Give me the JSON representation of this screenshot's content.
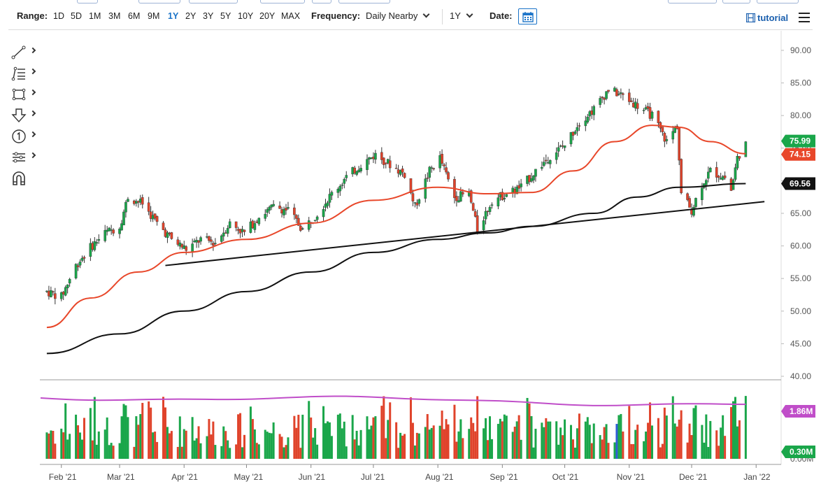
{
  "toolbar": {
    "range_label": "Range:",
    "ranges": [
      "1D",
      "5D",
      "1M",
      "3M",
      "6M",
      "9M",
      "1Y",
      "2Y",
      "3Y",
      "5Y",
      "10Y",
      "20Y",
      "MAX"
    ],
    "active_range": "1Y",
    "frequency_label": "Frequency:",
    "frequency_value": "Daily Nearby",
    "period_value": "1Y",
    "date_label": "Date:",
    "tutorial_label": "tutorial",
    "accent_color": "#1a73c8"
  },
  "drawing_tools": [
    "line-tool-icon",
    "fib-tool-icon",
    "rectangle-tool-icon",
    "arrow-down-tool-icon",
    "numbered-marker-icon",
    "settings-sliders-icon",
    "magnet-icon"
  ],
  "chart_data": [
    {
      "type": "candlestick",
      "y_ticks": [
        "90.00",
        "85.00",
        "80.00",
        "75.00",
        "70.00",
        "65.00",
        "60.00",
        "55.00",
        "50.00",
        "45.00",
        "40.00"
      ],
      "ylim": [
        40,
        90
      ],
      "x_ticks": [
        "Feb '21",
        "Mar '21",
        "Apr '21",
        "May '21",
        "Jun '21",
        "Jul '21",
        "Aug '21",
        "Sep '21",
        "Oct '21",
        "Nov '21",
        "Dec '21",
        "Jan '22"
      ],
      "up_color": "#1aa64a",
      "down_color": "#e0432b",
      "price_path": [
        [
          "2021-01-25",
          53.0
        ],
        [
          "2021-02-01",
          52.2
        ],
        [
          "2021-02-08",
          57.0
        ],
        [
          "2021-02-15",
          59.8
        ],
        [
          "2021-02-22",
          62.0
        ],
        [
          "2021-03-01",
          63.0
        ],
        [
          "2021-03-05",
          67.5
        ],
        [
          "2021-03-12",
          66.5
        ],
        [
          "2021-03-19",
          63.5
        ],
        [
          "2021-03-26",
          61.0
        ],
        [
          "2021-04-02",
          59.5
        ],
        [
          "2021-04-09",
          61.0
        ],
        [
          "2021-04-16",
          60.5
        ],
        [
          "2021-04-23",
          63.5
        ],
        [
          "2021-04-30",
          62.0
        ],
        [
          "2021-05-07",
          64.5
        ],
        [
          "2021-05-14",
          66.0
        ],
        [
          "2021-05-21",
          65.5
        ],
        [
          "2021-05-28",
          62.5
        ],
        [
          "2021-06-04",
          65.0
        ],
        [
          "2021-06-11",
          68.0
        ],
        [
          "2021-06-18",
          70.5
        ],
        [
          "2021-06-25",
          72.5
        ],
        [
          "2021-07-02",
          74.0
        ],
        [
          "2021-07-09",
          72.5
        ],
        [
          "2021-07-16",
          71.0
        ],
        [
          "2021-07-21",
          66.0
        ],
        [
          "2021-07-28",
          71.5
        ],
        [
          "2021-08-02",
          73.5
        ],
        [
          "2021-08-09",
          67.5
        ],
        [
          "2021-08-16",
          68.0
        ],
        [
          "2021-08-20",
          62.5
        ],
        [
          "2021-08-27",
          67.0
        ],
        [
          "2021-09-03",
          68.0
        ],
        [
          "2021-09-10",
          69.0
        ],
        [
          "2021-09-17",
          71.5
        ],
        [
          "2021-09-24",
          73.8
        ],
        [
          "2021-10-01",
          75.5
        ],
        [
          "2021-10-08",
          79.0
        ],
        [
          "2021-10-15",
          81.0
        ],
        [
          "2021-10-22",
          84.0
        ],
        [
          "2021-10-29",
          83.0
        ],
        [
          "2021-11-05",
          81.5
        ],
        [
          "2021-11-12",
          80.0
        ],
        [
          "2021-11-19",
          76.0
        ],
        [
          "2021-11-24",
          78.5
        ],
        [
          "2021-11-26",
          68.0
        ],
        [
          "2021-12-01",
          65.5
        ],
        [
          "2021-12-06",
          69.5
        ],
        [
          "2021-12-10",
          71.5
        ],
        [
          "2021-12-17",
          70.5
        ],
        [
          "2021-12-20",
          68.5
        ],
        [
          "2021-12-23",
          73.5
        ],
        [
          "2021-12-27",
          75.99
        ]
      ],
      "series": [
        {
          "name": "",
          "color": "#e8472a",
          "values": [
            [
              47.5,
              "2021-01-25"
            ],
            [
              52.0,
              "2021-02-15"
            ],
            [
              56.0,
              "2021-03-10"
            ],
            [
              59.0,
              "2021-04-01"
            ],
            [
              61.0,
              "2021-05-01"
            ],
            [
              63.5,
              "2021-06-01"
            ],
            [
              67.0,
              "2021-07-01"
            ],
            [
              69.0,
              "2021-08-01"
            ],
            [
              68.0,
              "2021-08-25"
            ],
            [
              68.2,
              "2021-09-15"
            ],
            [
              71.5,
              "2021-10-05"
            ],
            [
              76.0,
              "2021-10-25"
            ],
            [
              78.5,
              "2021-11-12"
            ],
            [
              78.2,
              "2021-11-25"
            ],
            [
              76.0,
              "2021-12-10"
            ],
            [
              74.15,
              "2021-12-27"
            ]
          ]
        },
        {
          "name": "",
          "color": "#111111",
          "values": [
            [
              43.5,
              "2021-01-25"
            ],
            [
              46.5,
              "2021-03-01"
            ],
            [
              50.0,
              "2021-04-01"
            ],
            [
              53.0,
              "2021-05-01"
            ],
            [
              56.0,
              "2021-06-01"
            ],
            [
              59.0,
              "2021-07-01"
            ],
            [
              61.0,
              "2021-08-01"
            ],
            [
              62.0,
              "2021-08-25"
            ],
            [
              63.0,
              "2021-09-15"
            ],
            [
              65.0,
              "2021-10-15"
            ],
            [
              67.5,
              "2021-11-05"
            ],
            [
              69.0,
              "2021-11-25"
            ],
            [
              69.56,
              "2021-12-27"
            ]
          ]
        }
      ],
      "trendlines": [
        {
          "from": [
            "2021-03-23",
            57.0
          ],
          "to": [
            "2022-01-05",
            66.8
          ]
        }
      ],
      "last_price": "75.99",
      "ma_fast_last": "74.15",
      "ma_slow_last": "69.56",
      "tag_colors": {
        "last": "#1aa64a",
        "ma_fast": "#e8472a",
        "ma_slow": "#111111"
      },
      "grid": false
    },
    {
      "type": "bar",
      "name": "volume",
      "y_ticks": [
        "0.00M"
      ],
      "avg_label": "1.86M",
      "last_label": "0.30M",
      "avg_color": "#c04ec9",
      "last_color": "#1aa64a",
      "highlight_color": "#2f5bd6"
    }
  ]
}
